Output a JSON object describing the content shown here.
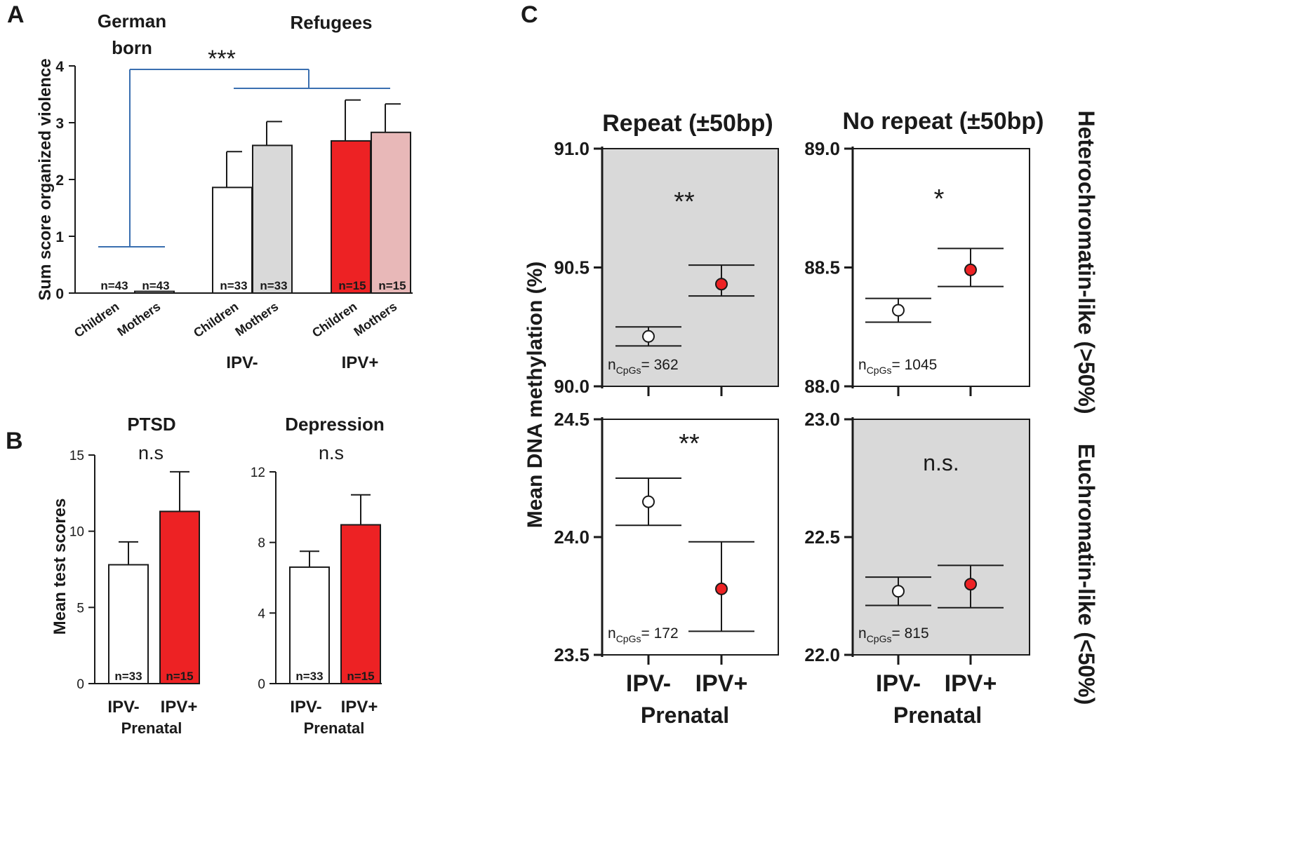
{
  "colors": {
    "white_bar": "#ffffff",
    "grey_bar": "#d9d9d9",
    "red": "#ed2224",
    "pink": "#e8b8b8",
    "bracket_blue": "#3a6fb0",
    "panel_grey": "#d9d9d9",
    "ink": "#1a1a1a"
  },
  "chart_data": [
    {
      "id": "A",
      "panel_label": "A",
      "type": "bar",
      "ylabel": "Sum score organized violence",
      "ylim": [
        0,
        4
      ],
      "yticks": [
        "0",
        "1",
        "2",
        "3",
        "4"
      ],
      "group_titles": [
        {
          "id": "german",
          "lines": [
            "German",
            "born"
          ]
        },
        {
          "id": "refugees",
          "lines": [
            "Refugees"
          ]
        }
      ],
      "subgroup_labels": [
        "IPV-",
        "IPV+"
      ],
      "significance": "***",
      "bars": [
        {
          "id": "a1",
          "category": "Children",
          "value": 0.0,
          "error": 0,
          "n": "n=43",
          "color": "white_bar"
        },
        {
          "id": "a2",
          "category": "Mothers",
          "value": 0.03,
          "error": 0,
          "n": "n=43",
          "color": "white_bar"
        },
        {
          "id": "a3",
          "category": "Children",
          "value": 1.86,
          "error": 0.63,
          "n": "n=33",
          "color": "white_bar"
        },
        {
          "id": "a4",
          "category": "Mothers",
          "value": 2.6,
          "error": 0.42,
          "n": "n=33",
          "color": "grey_bar"
        },
        {
          "id": "a5",
          "category": "Children",
          "value": 2.68,
          "error": 0.72,
          "n": "n=15",
          "color": "red"
        },
        {
          "id": "a6",
          "category": "Mothers",
          "value": 2.83,
          "error": 0.5,
          "n": "n=15",
          "color": "pink"
        }
      ]
    },
    {
      "id": "B",
      "panel_label": "B",
      "type": "bar",
      "ylabel": "Mean test scores",
      "xlabel": "Prenatal",
      "panels": [
        {
          "id": "ptsd",
          "title": "PTSD",
          "significance": "n.s",
          "ylim": [
            0,
            15
          ],
          "yticks": [
            "0",
            "5",
            "10",
            "15"
          ],
          "bars": [
            {
              "category": "IPV-",
              "value": 7.8,
              "error": 1.5,
              "n": "n=33",
              "color": "white_bar"
            },
            {
              "category": "IPV+",
              "value": 11.3,
              "error": 2.6,
              "n": "n=15",
              "color": "red"
            }
          ]
        },
        {
          "id": "dep",
          "title": "Depression",
          "significance": "n.s",
          "ylim": [
            0,
            12
          ],
          "yticks": [
            "0",
            "4",
            "8",
            "12"
          ],
          "bars": [
            {
              "category": "IPV-",
              "value": 6.6,
              "error": 0.9,
              "n": "n=33",
              "color": "white_bar"
            },
            {
              "category": "IPV+",
              "value": 9.0,
              "error": 1.7,
              "n": "n=15",
              "color": "red"
            }
          ]
        }
      ]
    },
    {
      "id": "C",
      "panel_label": "C",
      "type": "scatter",
      "ylabel": "Mean DNA methylation (%)",
      "xlabel": "Prenatal",
      "categories": [
        "IPV-",
        "IPV+"
      ],
      "column_titles": [
        "Repeat (±50bp)",
        "No repeat (±50bp)"
      ],
      "row_titles": [
        "Heterochromatin-like (>50%)",
        "Euchromatin-like (<50%)"
      ],
      "cells": [
        {
          "id": "c11",
          "shaded": true,
          "ylim": [
            90.0,
            91.0
          ],
          "yticks": [
            "90.0",
            "90.5",
            "91.0"
          ],
          "significance": "**",
          "n_main": "n",
          "n_sub": "CpGs",
          "n_val": "= 362",
          "points": [
            {
              "category": "IPV-",
              "mean": 90.21,
              "lo": 90.17,
              "hi": 90.25,
              "color": "white_bar"
            },
            {
              "category": "IPV+",
              "mean": 90.43,
              "lo": 90.38,
              "hi": 90.51,
              "color": "red"
            }
          ]
        },
        {
          "id": "c12",
          "shaded": false,
          "ylim": [
            88.0,
            89.0
          ],
          "yticks": [
            "88.0",
            "88.5",
            "89.0"
          ],
          "significance": "*",
          "n_main": "n",
          "n_sub": "CpGs",
          "n_val": "= 1045",
          "points": [
            {
              "category": "IPV-",
              "mean": 88.32,
              "lo": 88.27,
              "hi": 88.37,
              "color": "white_bar"
            },
            {
              "category": "IPV+",
              "mean": 88.49,
              "lo": 88.42,
              "hi": 88.58,
              "color": "red"
            }
          ]
        },
        {
          "id": "c21",
          "shaded": false,
          "ylim": [
            23.5,
            24.5
          ],
          "yticks": [
            "23.5",
            "24.0",
            "24.5"
          ],
          "significance": "**",
          "n_main": "n",
          "n_sub": "CpGs",
          "n_val": "= 172",
          "points": [
            {
              "category": "IPV-",
              "mean": 24.15,
              "lo": 24.05,
              "hi": 24.25,
              "color": "white_bar"
            },
            {
              "category": "IPV+",
              "mean": 23.78,
              "lo": 23.6,
              "hi": 23.98,
              "color": "red"
            }
          ]
        },
        {
          "id": "c22",
          "shaded": true,
          "ylim": [
            22.0,
            23.0
          ],
          "yticks": [
            "22.0",
            "22.5",
            "23.0"
          ],
          "significance": "n.s.",
          "n_main": "n",
          "n_sub": "CpGs",
          "n_val": "= 815",
          "points": [
            {
              "category": "IPV-",
              "mean": 22.27,
              "lo": 22.21,
              "hi": 22.33,
              "color": "white_bar"
            },
            {
              "category": "IPV+",
              "mean": 22.3,
              "lo": 22.2,
              "hi": 22.38,
              "color": "red"
            }
          ]
        }
      ]
    }
  ]
}
